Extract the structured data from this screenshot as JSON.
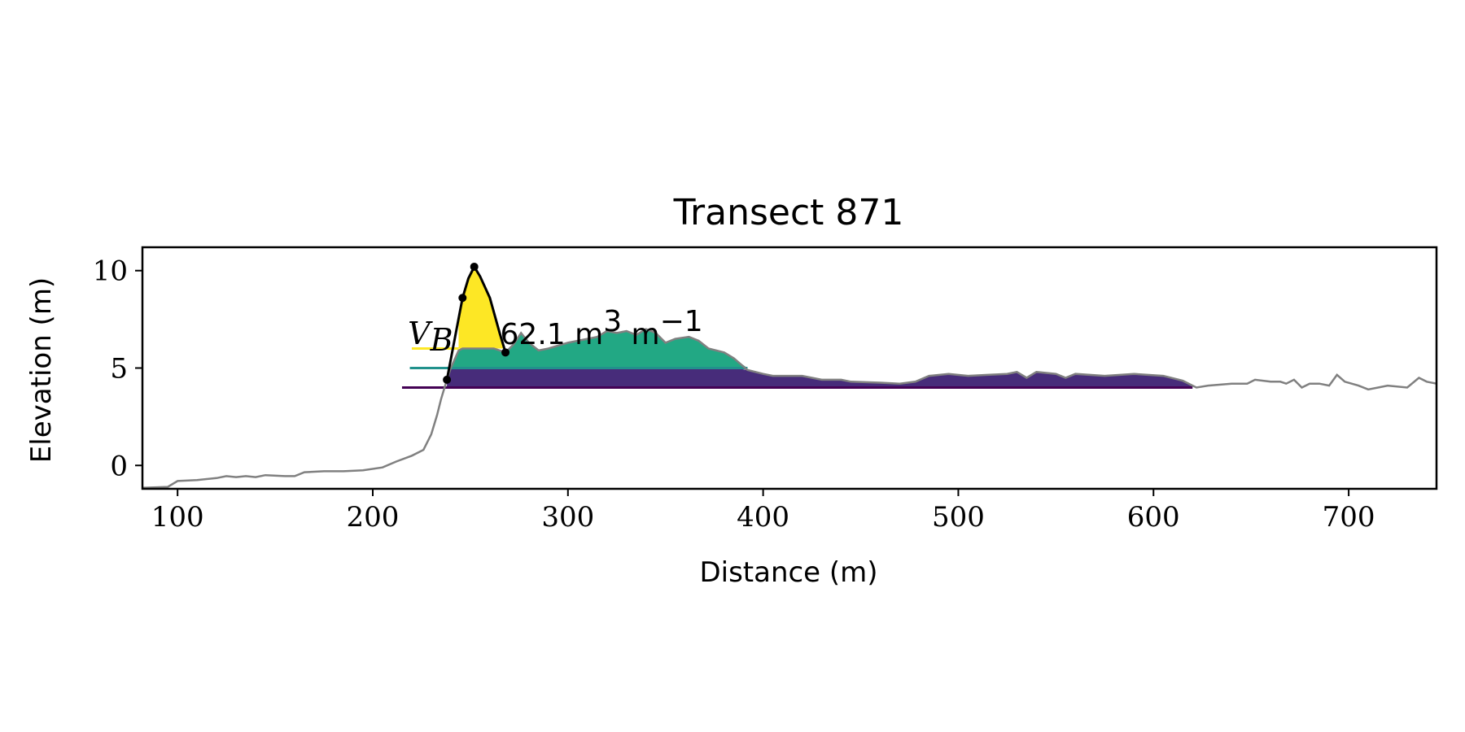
{
  "chart_data": {
    "type": "area",
    "title": "Transect 871",
    "xlabel": "Distance (m)",
    "ylabel": "Elevation (m)",
    "xlim": [
      82,
      745
    ],
    "ylim": [
      -1.2,
      11.2
    ],
    "xticks": [
      100,
      200,
      300,
      400,
      500,
      600,
      700
    ],
    "yticks": [
      0,
      5,
      10
    ],
    "grid": false,
    "profile": {
      "color": "#808080",
      "points": [
        [
          82,
          -1.15
        ],
        [
          95,
          -1.1
        ],
        [
          100,
          -0.8
        ],
        [
          110,
          -0.75
        ],
        [
          120,
          -0.65
        ],
        [
          125,
          -0.55
        ],
        [
          130,
          -0.6
        ],
        [
          135,
          -0.55
        ],
        [
          140,
          -0.6
        ],
        [
          145,
          -0.5
        ],
        [
          155,
          -0.55
        ],
        [
          160,
          -0.55
        ],
        [
          165,
          -0.35
        ],
        [
          175,
          -0.3
        ],
        [
          185,
          -0.3
        ],
        [
          195,
          -0.25
        ],
        [
          205,
          -0.1
        ],
        [
          212,
          0.2
        ],
        [
          220,
          0.5
        ],
        [
          226,
          0.8
        ],
        [
          230,
          1.6
        ],
        [
          233,
          2.6
        ],
        [
          235,
          3.4
        ],
        [
          238,
          4.4
        ],
        [
          240,
          5.0
        ],
        [
          244,
          5.9
        ],
        [
          246,
          6.0
        ],
        [
          252,
          6.0
        ],
        [
          262,
          6.0
        ],
        [
          268,
          5.8
        ],
        [
          272,
          6.2
        ],
        [
          276,
          6.8
        ],
        [
          280,
          6.3
        ],
        [
          285,
          5.9
        ],
        [
          290,
          6.0
        ],
        [
          300,
          6.3
        ],
        [
          310,
          6.5
        ],
        [
          315,
          6.6
        ],
        [
          320,
          6.9
        ],
        [
          325,
          6.8
        ],
        [
          330,
          6.9
        ],
        [
          335,
          6.7
        ],
        [
          340,
          7.0
        ],
        [
          345,
          6.8
        ],
        [
          350,
          6.3
        ],
        [
          355,
          6.5
        ],
        [
          362,
          6.6
        ],
        [
          367,
          6.4
        ],
        [
          372,
          6.0
        ],
        [
          380,
          5.8
        ],
        [
          385,
          5.5
        ],
        [
          392,
          4.9
        ],
        [
          400,
          4.7
        ],
        [
          405,
          4.6
        ],
        [
          420,
          4.6
        ],
        [
          430,
          4.4
        ],
        [
          440,
          4.4
        ],
        [
          445,
          4.3
        ],
        [
          460,
          4.25
        ],
        [
          470,
          4.2
        ],
        [
          478,
          4.3
        ],
        [
          485,
          4.6
        ],
        [
          495,
          4.7
        ],
        [
          505,
          4.6
        ],
        [
          515,
          4.65
        ],
        [
          525,
          4.7
        ],
        [
          530,
          4.8
        ],
        [
          535,
          4.5
        ],
        [
          540,
          4.8
        ],
        [
          550,
          4.7
        ],
        [
          555,
          4.5
        ],
        [
          560,
          4.7
        ],
        [
          575,
          4.6
        ],
        [
          590,
          4.7
        ],
        [
          605,
          4.6
        ],
        [
          615,
          4.35
        ],
        [
          622,
          4.0
        ],
        [
          628,
          4.1
        ],
        [
          640,
          4.2
        ],
        [
          648,
          4.2
        ],
        [
          652,
          4.4
        ],
        [
          660,
          4.3
        ],
        [
          665,
          4.3
        ],
        [
          668,
          4.2
        ],
        [
          672,
          4.4
        ],
        [
          676,
          4.0
        ],
        [
          680,
          4.2
        ],
        [
          685,
          4.2
        ],
        [
          690,
          4.1
        ],
        [
          694,
          4.65
        ],
        [
          698,
          4.3
        ],
        [
          705,
          4.1
        ],
        [
          710,
          3.9
        ],
        [
          715,
          4.0
        ],
        [
          720,
          4.1
        ],
        [
          730,
          4.0
        ],
        [
          736,
          4.5
        ],
        [
          740,
          4.3
        ],
        [
          745,
          4.2
        ]
      ]
    },
    "dune_profile": {
      "color": "#000000",
      "points": [
        [
          238,
          4.4
        ],
        [
          242,
          6.5
        ],
        [
          246,
          8.6
        ],
        [
          249,
          9.6
        ],
        [
          252,
          10.2
        ],
        [
          255,
          9.7
        ],
        [
          260,
          8.6
        ],
        [
          265,
          6.8
        ],
        [
          268,
          5.8
        ]
      ],
      "markers": [
        [
          238,
          4.4
        ],
        [
          246,
          8.6
        ],
        [
          252,
          10.2
        ],
        [
          268,
          5.8
        ]
      ]
    },
    "fills": [
      {
        "level": 4.0,
        "x_start": 238,
        "x_end": 620,
        "color": "#440154",
        "fill": "#472c7a",
        "line_x_start": 215
      },
      {
        "level": 5.0,
        "x_start": 240,
        "x_end": 392,
        "color": "#21918c",
        "fill": "#22a884",
        "line_x_start": 219
      },
      {
        "level": 6.0,
        "x_start": 244,
        "x_end": 268,
        "color": "#fde725",
        "fill": "#fde725",
        "line_x_start": 220
      }
    ],
    "annotation": {
      "symbol": "V",
      "subscript": "B",
      "value_text": "62.1 m",
      "superscript_1": "3",
      "unit_2": " m",
      "superscript_2": "−1"
    }
  }
}
